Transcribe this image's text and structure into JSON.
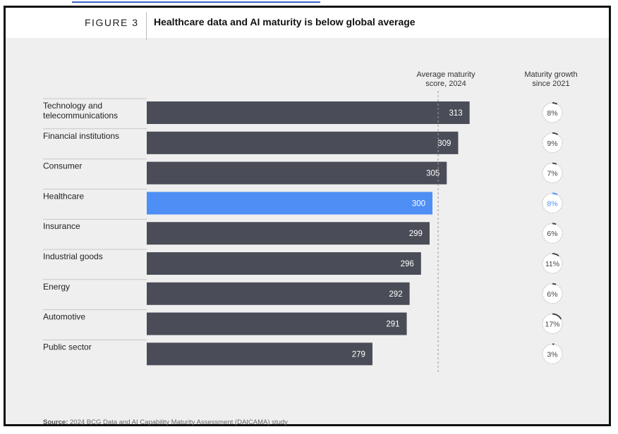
{
  "figure": {
    "label": "FIGURE 3",
    "title": "Healthcare data and AI maturity is below global average"
  },
  "columns": {
    "score_header_line1": "Average maturity",
    "score_header_line2": "score, 2024",
    "growth_header_line1": "Maturity growth",
    "growth_header_line2": "since 2021"
  },
  "colors": {
    "bar": "#4a4d57",
    "highlight": "#4d8ff5",
    "divider": "#c7c7c7",
    "ring_track": "#d0d0d0",
    "ring_fill": "#444444",
    "background": "#efefef"
  },
  "chart_data": {
    "type": "bar",
    "orientation": "horizontal",
    "categories": [
      [
        "Technology and",
        "telecommunications"
      ],
      [
        "Financial institutions"
      ],
      [
        "Consumer"
      ],
      [
        "Healthcare"
      ],
      [
        "Insurance"
      ],
      [
        "Industrial goods"
      ],
      [
        "Energy"
      ],
      [
        "Automotive"
      ],
      [
        "Public sector"
      ]
    ],
    "values": [
      313,
      309,
      305,
      300,
      299,
      296,
      292,
      291,
      279
    ],
    "value_labels": [
      "313",
      "309",
      "305",
      "300",
      "299",
      "296",
      "292",
      "291",
      "279"
    ],
    "growth": [
      8,
      9,
      7,
      8,
      6,
      11,
      6,
      17,
      3
    ],
    "growth_labels": [
      "8%",
      "9%",
      "7%",
      "8%",
      "6%",
      "11%",
      "6%",
      "17%",
      "3%"
    ],
    "highlight": "Healthcare",
    "average_line": 302,
    "xlim": [
      200,
      320
    ]
  },
  "source": {
    "prefix": "Source:",
    "text": " 2024 BCG Data and AI Capability Maturity Assessment (DAICAMA) study"
  }
}
